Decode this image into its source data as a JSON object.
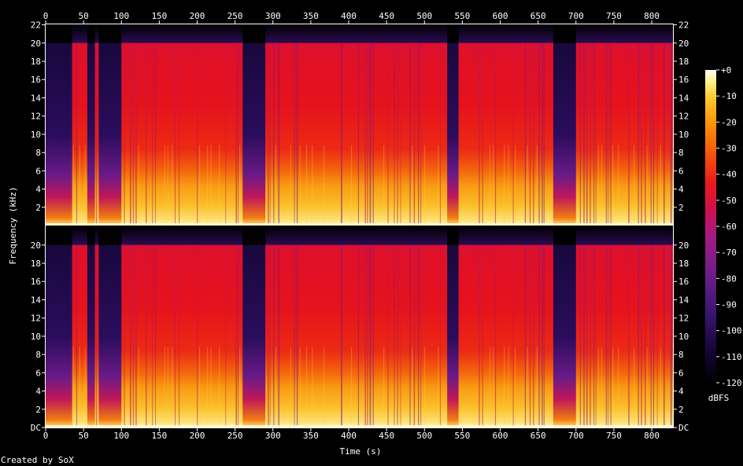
{
  "chart_data": {
    "type": "heatmap",
    "title": "",
    "xlabel": "Time (s)",
    "ylabel": "Frequency (kHz)",
    "colorbar_label": "dBFS",
    "credit": "Created by SoX",
    "xlim": [
      0,
      828
    ],
    "ylim_khz": [
      0,
      22.05
    ],
    "x_ticks": [
      "0",
      "50",
      "100",
      "150",
      "200",
      "250",
      "300",
      "350",
      "400",
      "450",
      "500",
      "550",
      "600",
      "650",
      "700",
      "750",
      "800"
    ],
    "y_ticks_upper": [
      "2",
      "4",
      "6",
      "8",
      "10",
      "12",
      "14",
      "16",
      "18",
      "20",
      "22"
    ],
    "y_ticks_lower": [
      "DC",
      "2",
      "4",
      "6",
      "8",
      "10",
      "12",
      "14",
      "16",
      "18",
      "20"
    ],
    "colorbar_ticks": [
      "+0",
      "-10",
      "-20",
      "-30",
      "-40",
      "-50",
      "-60",
      "-70",
      "-80",
      "-90",
      "-100",
      "-110",
      "-120"
    ],
    "channels": [
      "channel 1",
      "channel 2"
    ],
    "lowpass_cutoff_khz": 20,
    "quiet_segments_s": [
      [
        0,
        35
      ],
      [
        55,
        65
      ],
      [
        70,
        100
      ],
      [
        260,
        290
      ],
      [
        530,
        545
      ],
      [
        670,
        700
      ]
    ],
    "colors": [
      "#000000",
      "#1a0640",
      "#4b1a7a",
      "#8a2090",
      "#c01060",
      "#e8101e",
      "#f44c10",
      "#fb8a08",
      "#fdc020",
      "#fff07a",
      "#ffffff"
    ]
  }
}
